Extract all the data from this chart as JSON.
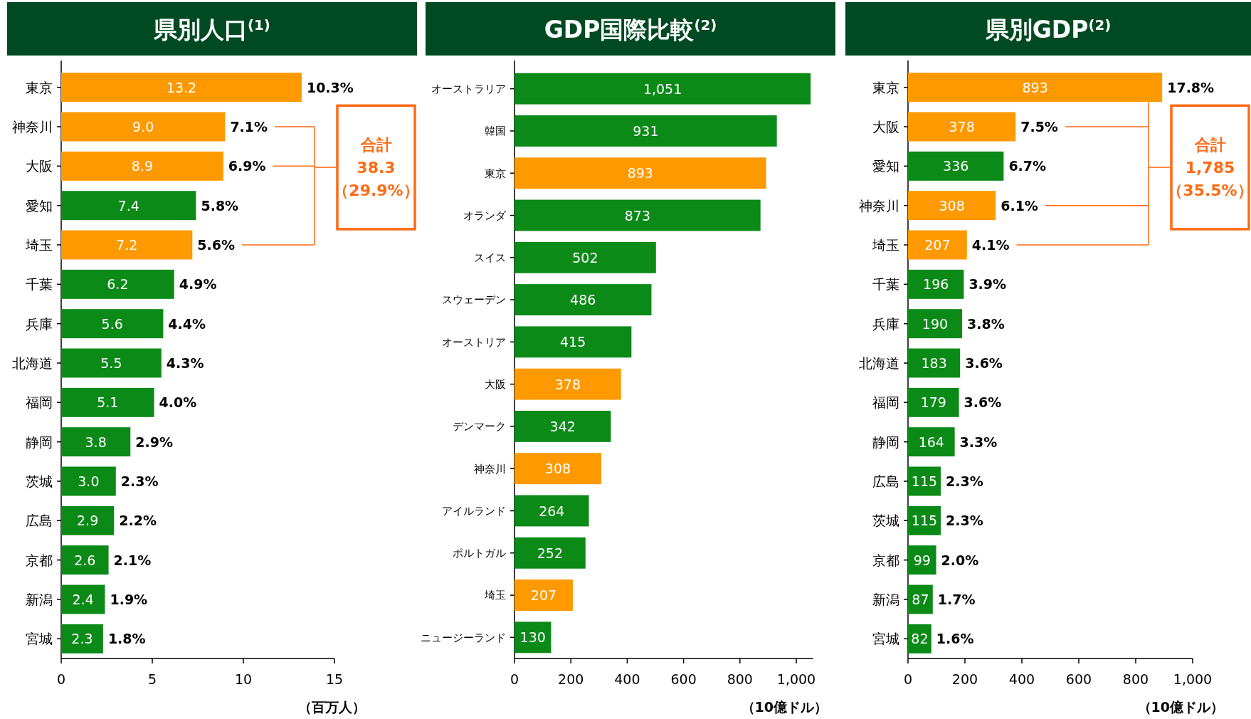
{
  "chart_data": [
    {
      "type": "bar",
      "orientation": "horizontal",
      "title": "県別人口$^{(1)}$",
      "xlabel": "（百万人）",
      "categories": [
        "東京",
        "神奈川",
        "大阪",
        "愛知",
        "埼玉",
        "千葉",
        "兵庫",
        "北海道",
        "福岡",
        "静岡",
        "茨城",
        "広島",
        "京都",
        "新潟",
        "宮城"
      ],
      "values": [
        13.2,
        9.0,
        8.9,
        7.4,
        7.2,
        6.2,
        5.6,
        5.5,
        5.1,
        3.8,
        3.0,
        2.9,
        2.6,
        2.4,
        2.3
      ],
      "value_labels": [
        "13.2",
        "9.0",
        "8.9",
        "7.4",
        "7.2",
        "6.2",
        "5.6",
        "5.5",
        "5.1",
        "3.8",
        "3.0",
        "2.9",
        "2.6",
        "2.4",
        "2.3"
      ],
      "colors": [
        "#ff9900",
        "#ff9900",
        "#ff9900",
        "#0b8a17",
        "#ff9900",
        "#0b8a17",
        "#0b8a17",
        "#0b8a17",
        "#0b8a17",
        "#0b8a17",
        "#0b8a17",
        "#0b8a17",
        "#0b8a17",
        "#0b8a17",
        "#0b8a17"
      ],
      "xlim": [
        0,
        15
      ],
      "xticks": [
        0,
        5,
        10,
        15
      ],
      "annotations": [
        {
          "text": "10.3%",
          "x": 13.2,
          "y": "東京"
        },
        {
          "text": "7.1%",
          "x": 9.0,
          "y": "神奈川"
        },
        {
          "text": "6.9%",
          "x": 8.9,
          "y": "大阪"
        },
        {
          "text": "5.8%",
          "x": 7.4,
          "y": "愛知"
        },
        {
          "text": "5.6%",
          "x": 7.2,
          "y": "埼玉"
        },
        {
          "text": "4.9%",
          "x": 6.2,
          "y": "千葉"
        },
        {
          "text": "4.4%",
          "x": 5.6,
          "y": "兵庫"
        },
        {
          "text": "4.3%",
          "x": 5.5,
          "y": "北海道"
        },
        {
          "text": "4.0%",
          "x": 5.1,
          "y": "福岡"
        },
        {
          "text": "2.9%",
          "x": 3.8,
          "y": "静岡"
        },
        {
          "text": "2.3%",
          "x": 3.0,
          "y": "茨城"
        },
        {
          "text": "2.2%",
          "x": 2.9,
          "y": "広島"
        },
        {
          "text": "2.1%",
          "x": 2.6,
          "y": "京都"
        },
        {
          "text": "1.9%",
          "x": 2.4,
          "y": "新潟"
        },
        {
          "text": "1.8%",
          "x": 2.3,
          "y": "宮城"
        },
        "合計",
        "38.3",
        "（29.9%）"
      ]
    },
    {
      "type": "bar",
      "orientation": "horizontal",
      "title": "GDP国際比較$^{(2)}$",
      "xlabel": "（10億ドル）",
      "categories": [
        "オーストラリア",
        "韓国",
        "東京",
        "オランダ",
        "スイス",
        "スウェーデン",
        "オーストリア",
        "大阪",
        "デンマーク",
        "神奈川",
        "アイルランド",
        "ポルトガル",
        "埼玉",
        "ニュージーランド"
      ],
      "values": [
        1051,
        931,
        893,
        873,
        502,
        486,
        415,
        378,
        342,
        308,
        264,
        252,
        207,
        130
      ],
      "value_labels": [
        "1,051",
        "931",
        "893",
        "873",
        "502",
        "486",
        "415",
        "378",
        "342",
        "308",
        "264",
        "252",
        "207",
        "130"
      ],
      "colors": [
        "#0b8a17",
        "#0b8a17",
        "#ff9900",
        "#0b8a17",
        "#0b8a17",
        "#0b8a17",
        "#0b8a17",
        "#ff9900",
        "#0b8a17",
        "#ff9900",
        "#0b8a17",
        "#0b8a17",
        "#ff9900",
        "#0b8a17"
      ],
      "xlim": [
        0,
        1060
      ],
      "xticks": [
        0,
        200,
        400,
        600,
        800,
        {
          "value": 1000,
          "label": "1,000"
        }
      ]
    },
    {
      "type": "bar",
      "orientation": "horizontal",
      "title": "県別GDP$^{(2)}$",
      "xlabel": "（10億ドル）",
      "categories": [
        "東京",
        "大阪",
        "愛知",
        "神奈川",
        "埼玉",
        "千葉",
        "兵庫",
        "北海道",
        "福岡",
        "静岡",
        "広島",
        "茨城",
        "京都",
        "新潟",
        "宮城"
      ],
      "values": [
        893,
        378,
        336,
        308,
        207,
        196,
        190,
        183,
        179,
        164,
        115,
        115,
        99,
        87,
        82
      ],
      "value_labels": [
        "893",
        "378",
        "336",
        "308",
        "207",
        "196",
        "190",
        "183",
        "179",
        "164",
        "115",
        "115",
        "99",
        "87",
        "82"
      ],
      "colors": [
        "#ff9900",
        "#ff9900",
        "#0b8a17",
        "#ff9900",
        "#ff9900",
        "#0b8a17",
        "#0b8a17",
        "#0b8a17",
        "#0b8a17",
        "#0b8a17",
        "#0b8a17",
        "#0b8a17",
        "#0b8a17",
        "#0b8a17",
        "#0b8a17"
      ],
      "xlim": [
        0,
        1000
      ],
      "xticks": [
        0,
        200,
        400,
        600,
        800,
        {
          "value": 1000,
          "label": "1,000"
        }
      ],
      "annotations": [
        {
          "text": "17.8%",
          "x": 893,
          "y": "東京"
        },
        {
          "text": "7.5%",
          "x": 378,
          "y": "大阪"
        },
        {
          "text": "6.7%",
          "x": 336,
          "y": "愛知"
        },
        {
          "text": "6.1%",
          "x": 308,
          "y": "神奈川"
        },
        {
          "text": "4.1%",
          "x": 207,
          "y": "埼玉"
        },
        {
          "text": "3.9%",
          "x": 196,
          "y": "千葉"
        },
        {
          "text": "3.8%",
          "x": 190,
          "y": "兵庫"
        },
        {
          "text": "3.6%",
          "x": 183,
          "y": "北海道"
        },
        {
          "text": "3.6%",
          "x": 179,
          "y": "福岡"
        },
        {
          "text": "3.3%",
          "x": 164,
          "y": "静岡"
        },
        {
          "text": "2.3%",
          "x": 115,
          "y": "広島"
        },
        {
          "text": "2.3%",
          "x": 115,
          "y": "茨城"
        },
        {
          "text": "2.0%",
          "x": 99,
          "y": "京都"
        },
        {
          "text": "1.7%",
          "x": 87,
          "y": "新潟"
        },
        {
          "text": "1.6%",
          "x": 82,
          "y": "宮城"
        },
        "合計",
        "1,785",
        "（35.5%）"
      ]
    }
  ]
}
